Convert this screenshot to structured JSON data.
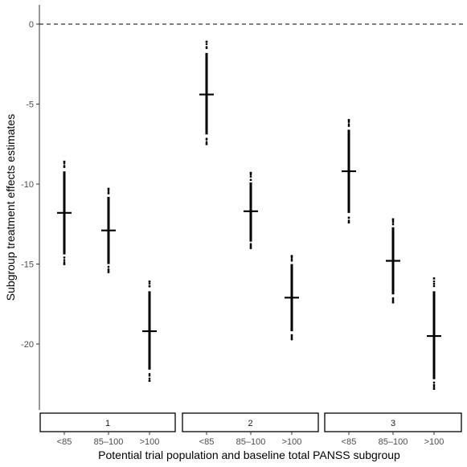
{
  "chart_data": {
    "type": "scatter",
    "xlabel": "Potential trial population and baseline total PANSS subgroup",
    "ylabel": "Subgroup treatment effects estimates",
    "ylim": [
      -24.2,
      1.2
    ],
    "y_ticks": [
      0,
      -5,
      -10,
      -15,
      -20
    ],
    "reference_line": {
      "y": 0,
      "style": "dashed"
    },
    "grid": false,
    "legend": "none",
    "facet_position": "bottom",
    "categories": [
      "<85",
      "85–100",
      ">100"
    ],
    "panels": [
      {
        "label": "1",
        "groups": [
          {
            "category": "<85",
            "estimate": -11.8,
            "min": -15.0,
            "max": -8.6,
            "dense_min": -14.4,
            "dense_max": -9.2
          },
          {
            "category": "85–100",
            "estimate": -12.9,
            "min": -15.5,
            "max": -10.3,
            "dense_min": -15.0,
            "dense_max": -10.8
          },
          {
            "category": ">100",
            "estimate": -19.2,
            "min": -22.3,
            "max": -16.1,
            "dense_min": -21.6,
            "dense_max": -16.7
          }
        ]
      },
      {
        "label": "2",
        "groups": [
          {
            "category": "<85",
            "estimate": -4.4,
            "min": -7.5,
            "max": -1.1,
            "dense_min": -6.9,
            "dense_max": -1.8
          },
          {
            "category": "85–100",
            "estimate": -11.7,
            "min": -14.0,
            "max": -9.3,
            "dense_min": -13.6,
            "dense_max": -9.9
          },
          {
            "category": ">100",
            "estimate": -17.1,
            "min": -19.7,
            "max": -14.5,
            "dense_min": -19.2,
            "dense_max": -15.0
          }
        ]
      },
      {
        "label": "3",
        "groups": [
          {
            "category": "<85",
            "estimate": -9.2,
            "min": -12.4,
            "max": -6.0,
            "dense_min": -11.8,
            "dense_max": -6.6
          },
          {
            "category": "85–100",
            "estimate": -14.8,
            "min": -17.4,
            "max": -12.2,
            "dense_min": -16.9,
            "dense_max": -12.7
          },
          {
            "category": ">100",
            "estimate": -19.5,
            "min": -22.8,
            "max": -15.9,
            "dense_min": -22.2,
            "dense_max": -16.7
          }
        ]
      }
    ]
  },
  "colors": {
    "points": "#000000",
    "axis": "#333333",
    "tick_text": "#4d4d4d",
    "reference_line": "#000000",
    "strip_fill": "#ffffff",
    "strip_border": "#000000"
  }
}
